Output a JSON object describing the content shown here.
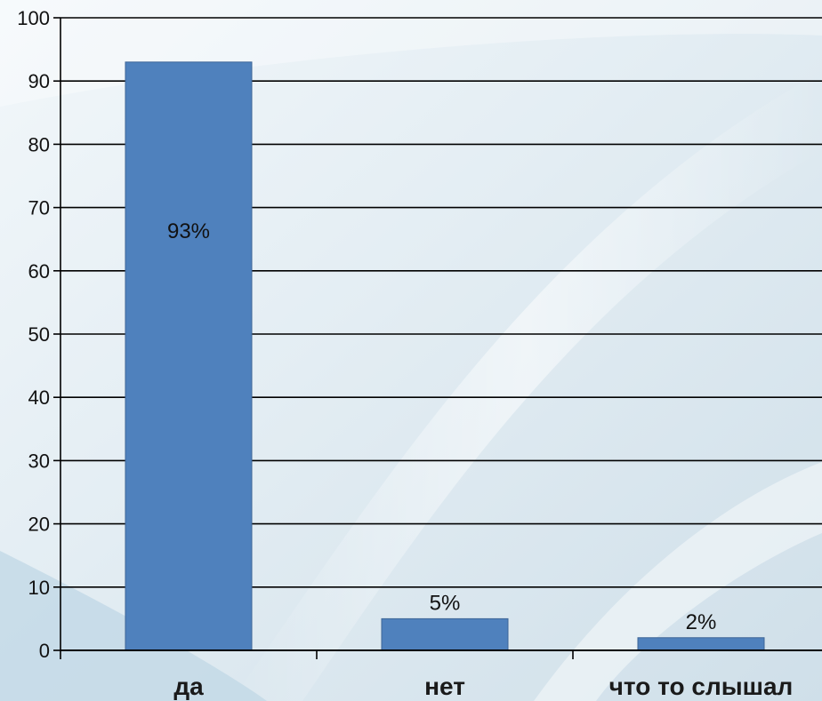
{
  "colors": {
    "bar": "#4f81bd",
    "bar_edge": "#3d6596",
    "grid": "#000000",
    "background": "#dfeaf2",
    "background_light": "#f7fafc"
  },
  "chart_data": {
    "type": "bar",
    "title": "",
    "xlabel": "",
    "ylabel": "",
    "categories": [
      "да",
      "нет",
      "что то слышал"
    ],
    "values": [
      93,
      5,
      2
    ],
    "data_labels": [
      "93%",
      "5%",
      "2%"
    ],
    "ylim": [
      0,
      100
    ],
    "y_ticks": [
      0,
      10,
      20,
      30,
      40,
      50,
      60,
      70,
      80,
      90,
      100
    ],
    "grid": true,
    "legend": "none"
  }
}
